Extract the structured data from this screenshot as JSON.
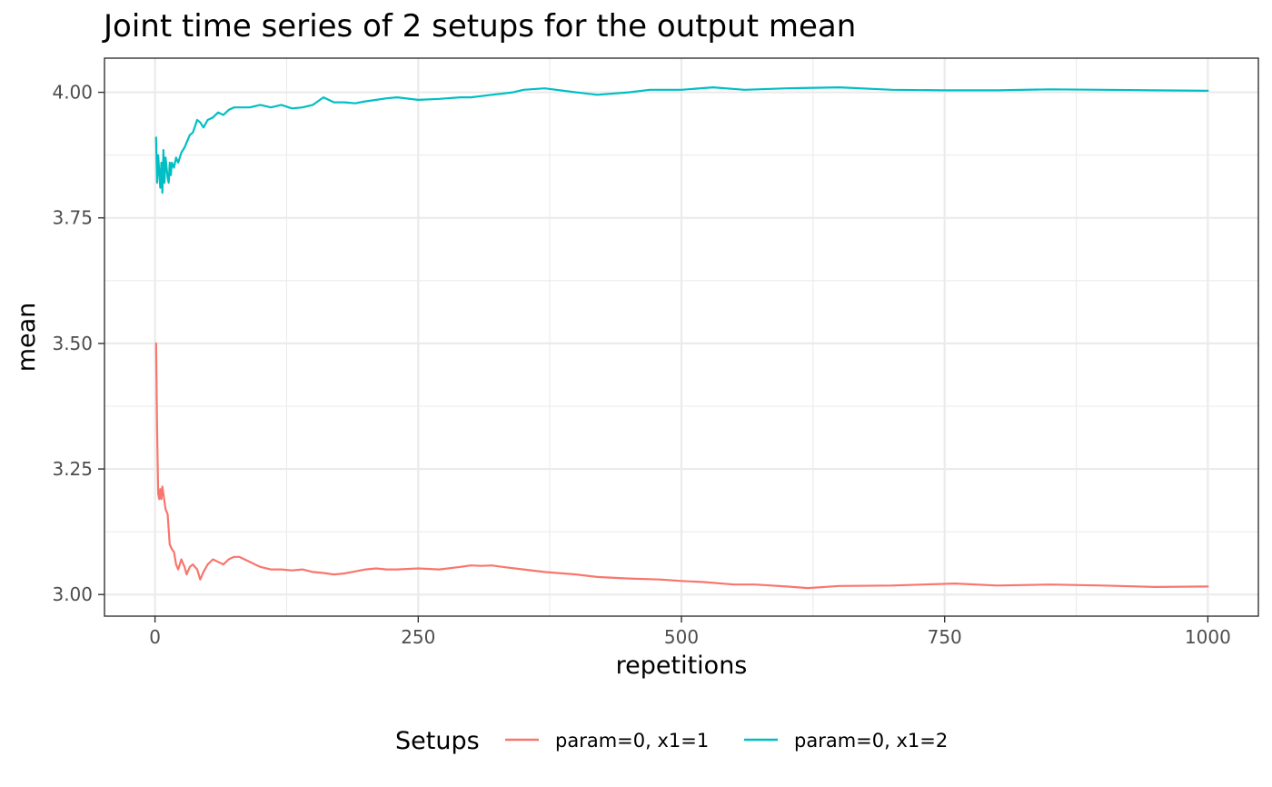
{
  "chart_data": {
    "type": "line",
    "title": "Joint time series of 2 setups for the output mean",
    "xlabel": "repetitions",
    "ylabel": "mean",
    "xlim": [
      -48,
      1048
    ],
    "ylim": [
      2.957,
      4.068
    ],
    "x_ticks": [
      0,
      250,
      500,
      750,
      1000
    ],
    "x_tick_labels": [
      "0",
      "250",
      "500",
      "750",
      "1000"
    ],
    "y_ticks": [
      3.0,
      3.25,
      3.5,
      3.75,
      4.0
    ],
    "y_tick_labels": [
      "3.00",
      "3.25",
      "3.50",
      "3.75",
      "4.00"
    ],
    "grid": true,
    "legend": {
      "title": "Setups",
      "position": "bottom"
    },
    "series": [
      {
        "name": "param=0, x1=1",
        "color": "#F8766D",
        "x": [
          1,
          2,
          3,
          4,
          5,
          6,
          7,
          8,
          10,
          12,
          14,
          16,
          18,
          20,
          22,
          25,
          28,
          30,
          33,
          36,
          40,
          43,
          46,
          50,
          55,
          60,
          65,
          70,
          75,
          80,
          85,
          90,
          95,
          100,
          110,
          120,
          130,
          140,
          150,
          160,
          170,
          180,
          190,
          200,
          210,
          220,
          230,
          250,
          270,
          290,
          300,
          310,
          320,
          330,
          350,
          370,
          400,
          420,
          450,
          480,
          500,
          520,
          550,
          570,
          600,
          620,
          650,
          700,
          730,
          760,
          800,
          850,
          900,
          950,
          1000
        ],
        "y": [
          3.5,
          3.33,
          3.2,
          3.19,
          3.21,
          3.19,
          3.215,
          3.2,
          3.17,
          3.16,
          3.1,
          3.09,
          3.085,
          3.06,
          3.05,
          3.07,
          3.055,
          3.04,
          3.055,
          3.06,
          3.05,
          3.03,
          3.045,
          3.06,
          3.07,
          3.065,
          3.06,
          3.07,
          3.075,
          3.075,
          3.07,
          3.065,
          3.06,
          3.055,
          3.05,
          3.05,
          3.048,
          3.05,
          3.045,
          3.043,
          3.04,
          3.042,
          3.046,
          3.05,
          3.052,
          3.05,
          3.05,
          3.052,
          3.05,
          3.055,
          3.058,
          3.057,
          3.058,
          3.055,
          3.05,
          3.045,
          3.04,
          3.035,
          3.032,
          3.03,
          3.027,
          3.025,
          3.02,
          3.02,
          3.016,
          3.013,
          3.017,
          3.018,
          3.02,
          3.022,
          3.018,
          3.02,
          3.018,
          3.015,
          3.016
        ]
      },
      {
        "name": "param=0, x1=2",
        "color": "#00BFC4",
        "x": [
          1,
          2,
          3,
          4,
          5,
          6,
          7,
          8,
          9,
          10,
          11,
          12,
          13,
          14,
          15,
          16,
          18,
          20,
          22,
          25,
          28,
          30,
          33,
          36,
          40,
          43,
          46,
          50,
          55,
          60,
          65,
          70,
          75,
          80,
          90,
          100,
          110,
          120,
          130,
          140,
          150,
          160,
          170,
          180,
          190,
          200,
          210,
          220,
          230,
          250,
          270,
          290,
          300,
          320,
          340,
          350,
          370,
          400,
          420,
          450,
          470,
          500,
          530,
          560,
          600,
          650,
          700,
          750,
          800,
          850,
          900,
          950,
          1000
        ],
        "y": [
          3.91,
          3.82,
          3.875,
          3.84,
          3.81,
          3.86,
          3.8,
          3.885,
          3.82,
          3.87,
          3.85,
          3.83,
          3.82,
          3.86,
          3.835,
          3.86,
          3.85,
          3.87,
          3.86,
          3.88,
          3.89,
          3.9,
          3.915,
          3.92,
          3.945,
          3.94,
          3.93,
          3.945,
          3.95,
          3.96,
          3.955,
          3.965,
          3.97,
          3.97,
          3.97,
          3.975,
          3.97,
          3.975,
          3.968,
          3.97,
          3.975,
          3.99,
          3.98,
          3.98,
          3.978,
          3.982,
          3.985,
          3.988,
          3.99,
          3.985,
          3.987,
          3.99,
          3.99,
          3.995,
          4.0,
          4.005,
          4.008,
          4.0,
          3.995,
          4.0,
          4.005,
          4.005,
          4.01,
          4.005,
          4.008,
          4.01,
          4.005,
          4.004,
          4.004,
          4.006,
          4.005,
          4.004,
          4.003
        ]
      }
    ]
  }
}
